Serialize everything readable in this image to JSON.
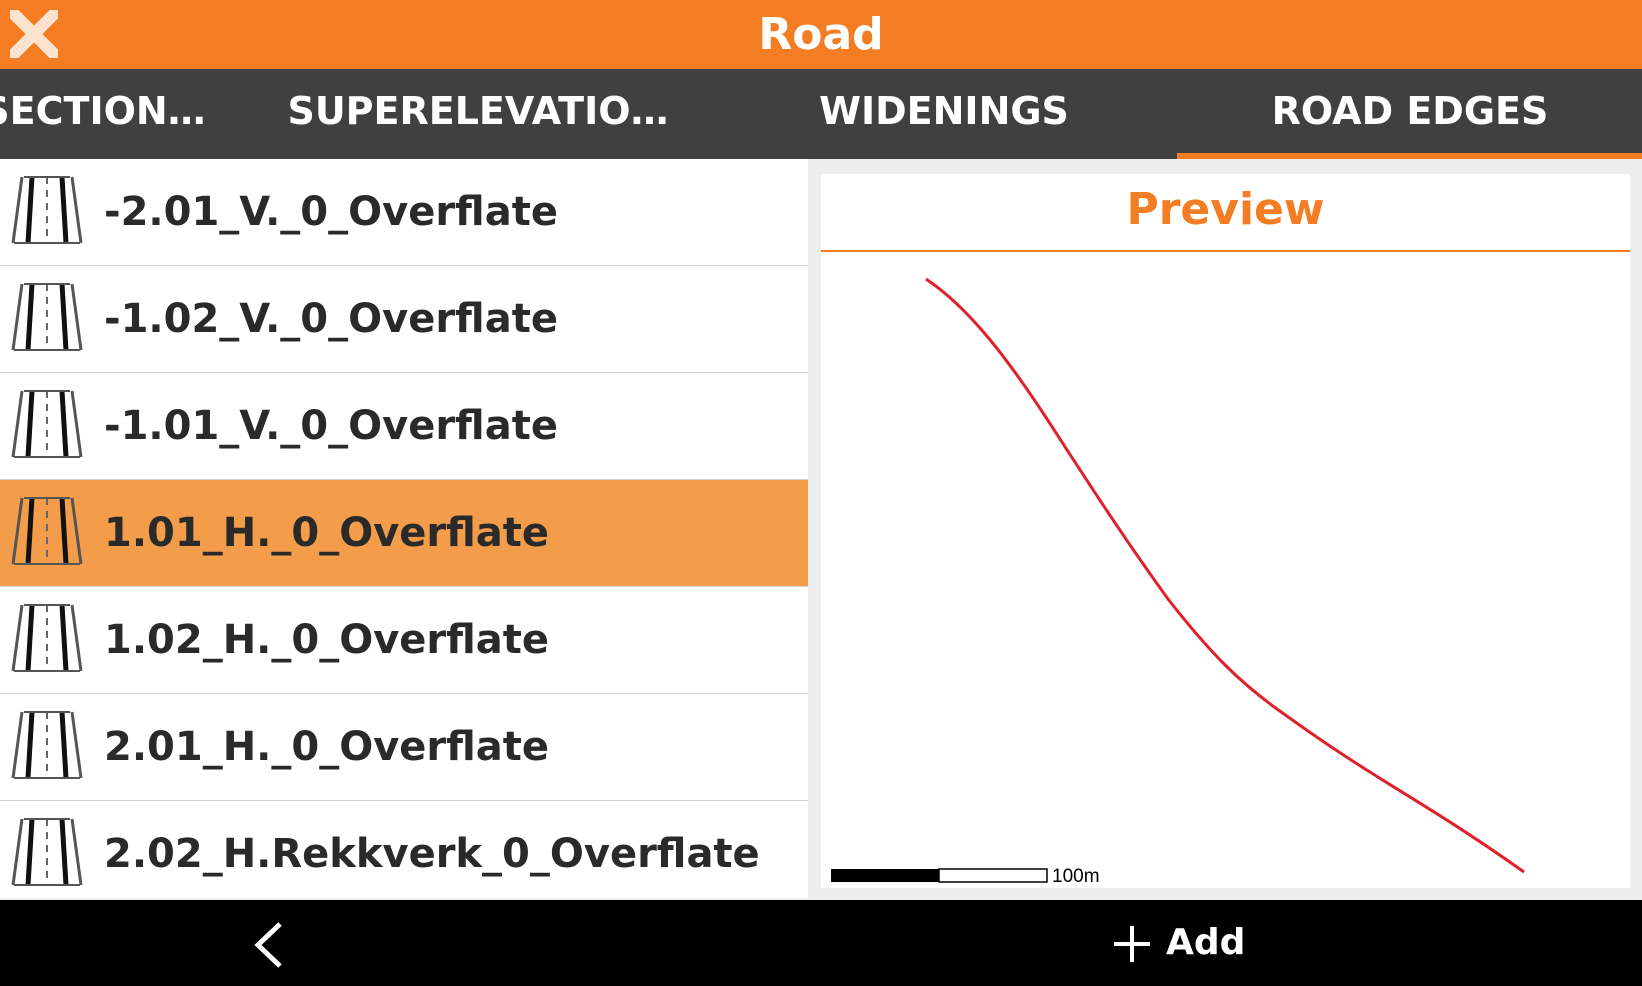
{
  "header": {
    "title": "Road"
  },
  "tabs": [
    "SECTION…",
    "SUPERELEVATIO…",
    "WIDENINGS",
    "ROAD EDGES"
  ],
  "list": [
    "-2.01_V._0_Overflate",
    "-1.02_V._0_Overflate",
    "-1.01_V._0_Overflate",
    "1.01_H._0_Overflate",
    "1.02_H._0_Overflate",
    "2.01_H._0_Overflate",
    "2.02_H.Rekkverk_0_Overflate"
  ],
  "preview": {
    "title": "Preview",
    "scale_label": "100m"
  },
  "footer": {
    "add": "Add"
  }
}
